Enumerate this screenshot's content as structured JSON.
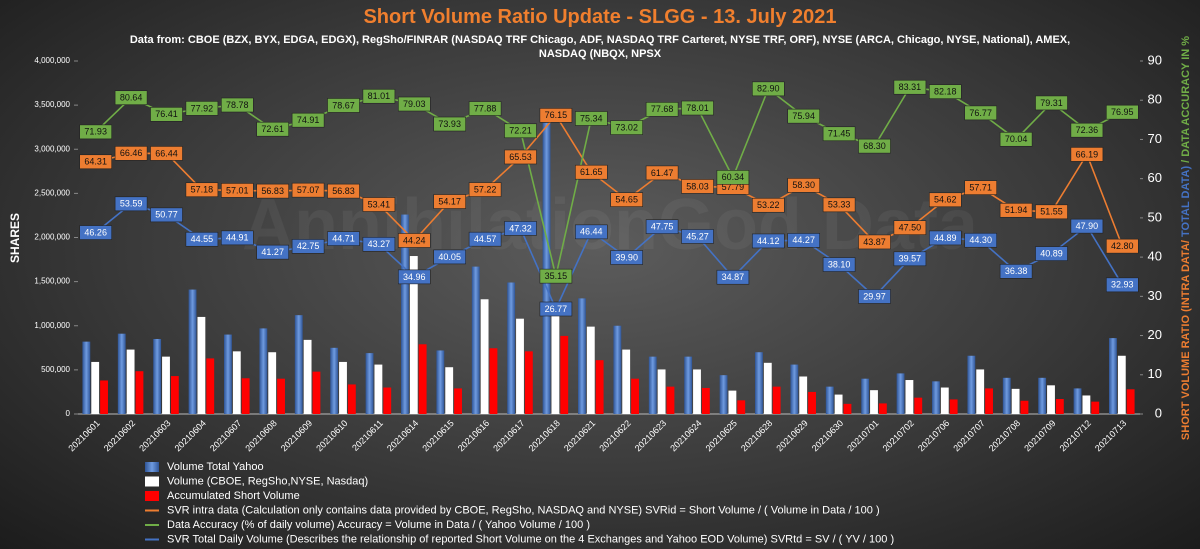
{
  "chart_data": {
    "type": "bar-line",
    "title": "Short Volume Ratio Update - SLGG - 13. July 2021",
    "subtitle": "Data from: CBOE (BZX, BYX, EDGA, EDGX), RegSho/FINRAR (NASDAQ TRF Chicago, ADF, NASDAQ TRF Carteret, NYSE TRF, ORF), NYSE (ARCA, Chicago, NYSE, National), AMEX, NASDAQ (NBQX, NPSX",
    "watermark": "AnnihilationGod Data",
    "y_label": "SHARES",
    "y2_label": [
      "SHORT VOLUME RATIO (INTRA DATA/",
      " TOTAL DATA)",
      " / DATA ACCURACY IN %"
    ],
    "y2_label_colors": [
      "#ed7d31",
      "#4472c4",
      "#70ad47"
    ],
    "categories": [
      "20210601",
      "20210602",
      "20210603",
      "20210604",
      "20210607",
      "20210608",
      "20210609",
      "20210610",
      "20210611",
      "20210614",
      "20210615",
      "20210616",
      "20210617",
      "20210618",
      "20210621",
      "20210622",
      "20210623",
      "20210624",
      "20210625",
      "20210628",
      "20210629",
      "20210630",
      "20210701",
      "20210702",
      "20210706",
      "20210707",
      "20210708",
      "20210709",
      "20210712",
      "20210713"
    ],
    "ylim": [
      0,
      4000000
    ],
    "yticks": [
      0,
      {
        "value": 500000,
        "label": "500,000"
      },
      {
        "value": 1000000,
        "label": "1,000,000"
      },
      {
        "value": 1500000,
        "label": "1,500,000"
      },
      {
        "value": 2000000,
        "label": "2,000,000"
      },
      {
        "value": 2500000,
        "label": "2,500,000"
      },
      {
        "value": 3000000,
        "label": "3,000,000"
      },
      {
        "value": 3500000,
        "label": "3,500,000"
      },
      {
        "value": 4000000,
        "label": "4,000,000"
      }
    ],
    "y2lim": [
      0,
      90
    ],
    "y2ticks": [
      0,
      10,
      20,
      30,
      40,
      50,
      60,
      70,
      80,
      90
    ],
    "grid": false,
    "series": [
      {
        "name": "Volume Total Yahoo",
        "type": "bar",
        "color": "#4472c4",
        "values": [
          820000,
          910000,
          850000,
          1410000,
          900000,
          970000,
          1120000,
          750000,
          690000,
          2260000,
          720000,
          1670000,
          1490000,
          3300000,
          1310000,
          1000000,
          650000,
          650000,
          440000,
          700000,
          560000,
          310000,
          400000,
          460000,
          370000,
          660000,
          410000,
          410000,
          290000,
          860000
        ]
      },
      {
        "name": "Volume (CBOE, RegSho,NYSE, Nasdaq)",
        "type": "bar",
        "color": "#ffffff",
        "values": [
          590000,
          730000,
          650000,
          1100000,
          710000,
          700000,
          840000,
          590000,
          560000,
          1790000,
          530000,
          1300000,
          1080000,
          1160000,
          990000,
          730000,
          505000,
          505000,
          265000,
          580000,
          425000,
          220000,
          270000,
          385000,
          300000,
          505000,
          285000,
          325000,
          210000,
          660000
        ]
      },
      {
        "name": "Accumulated Short Volume",
        "type": "bar",
        "color": "#ff0000",
        "values": [
          380000,
          485000,
          430000,
          630000,
          405000,
          400000,
          480000,
          335000,
          300000,
          790000,
          290000,
          745000,
          710000,
          885000,
          610000,
          400000,
          310000,
          295000,
          155000,
          310000,
          250000,
          115000,
          120000,
          185000,
          165000,
          290000,
          150000,
          170000,
          140000,
          280000
        ]
      },
      {
        "name": "SVR intra data (Calculation only contains data provided by CBOE, RegSho, NASDAQ and NYSE) SVRid = Short Volume / ( Volume in Data / 100 )",
        "type": "line",
        "axis": "y2",
        "color": "#ed7d31",
        "values": [
          64.31,
          66.46,
          66.44,
          57.18,
          57.01,
          56.83,
          57.07,
          56.83,
          53.41,
          44.24,
          54.17,
          57.22,
          65.53,
          76.15,
          61.65,
          54.65,
          61.47,
          58.03,
          57.79,
          53.22,
          58.3,
          53.33,
          43.87,
          47.5,
          54.62,
          57.71,
          51.94,
          51.55,
          66.19,
          42.8
        ],
        "value_labels": [
          "64.31",
          "66.46",
          "66.44",
          "57.18",
          "57.01",
          "56.83",
          "57.07",
          "56.83",
          "53.41",
          "44.24",
          "54.17",
          "57.22",
          "65.53",
          "76.15",
          "61.65",
          "54.65",
          "61.47",
          "58.03",
          "57.79",
          "53.22",
          "58.30",
          "53.33",
          "43.87",
          "47.50",
          "54.62",
          "57.71",
          "51.94",
          "51.55",
          "66.19",
          "42.80"
        ]
      },
      {
        "name": "Data Accuracy (% of daily volume) Accuracy = Volume in Data / ( Yahoo Volume / 100 )",
        "type": "line",
        "axis": "y2",
        "color": "#70ad47",
        "values": [
          71.93,
          80.64,
          76.41,
          77.92,
          78.78,
          72.61,
          74.91,
          78.67,
          81.01,
          79.03,
          73.93,
          77.88,
          72.21,
          35.15,
          75.34,
          73.02,
          77.68,
          78.01,
          60.34,
          82.9,
          75.94,
          71.45,
          68.3,
          83.31,
          82.18,
          76.77,
          70.04,
          79.31,
          72.36,
          76.95
        ],
        "value_labels": [
          "71.93",
          "80.64",
          "76.41",
          "77.92",
          "78.78",
          "72.61",
          "74.91",
          "78.67",
          "81.01",
          "79.03",
          "73.93",
          "77.88",
          "72.21",
          "35.15",
          "75.34",
          "73.02",
          "77.68",
          "78.01",
          "60.34",
          "82.90",
          "75.94",
          "71.45",
          "68.30",
          "83.31",
          "82.18",
          "76.77",
          "70.04",
          "79.31",
          "72.36",
          "76.95"
        ]
      },
      {
        "name": "SVR Total Daily Volume (Describes the relationship of reported Short Volume on the 4 Exchanges and Yahoo EOD Volume) SVRtd = SV / ( YV / 100 )",
        "type": "line",
        "axis": "y2",
        "color": "#4472c4",
        "values": [
          46.26,
          53.59,
          50.77,
          44.55,
          44.91,
          41.27,
          42.75,
          44.71,
          43.27,
          34.96,
          40.05,
          44.57,
          47.32,
          26.77,
          46.44,
          39.9,
          47.75,
          45.27,
          34.87,
          44.12,
          44.27,
          38.1,
          29.97,
          39.57,
          44.89,
          44.3,
          36.38,
          40.89,
          47.9,
          32.93
        ],
        "value_labels": [
          "46.26",
          "53.59",
          "50.77",
          "44.55",
          "44.91",
          "41.27",
          "42.75",
          "44.71",
          "43.27",
          "34.96",
          "40.05",
          "44.57",
          "47.32",
          "26.77",
          "46.44",
          "39.90",
          "47.75",
          "45.27",
          "34.87",
          "44.12",
          "44.27",
          "38.10",
          "29.97",
          "39.57",
          "44.89",
          "44.30",
          "36.38",
          "40.89",
          "47.90",
          "32.93"
        ]
      }
    ]
  }
}
